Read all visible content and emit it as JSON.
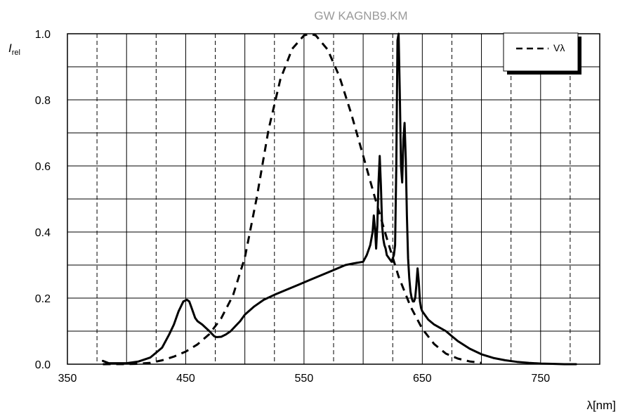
{
  "chart_data": {
    "type": "line",
    "title": "GW KAGNB9.KM",
    "xlabel": "λ[nm]",
    "ylabel": "I",
    "ylabel_sub": "rel",
    "xlim": [
      350,
      800
    ],
    "ylim": [
      0,
      1.0
    ],
    "xticks": [
      350,
      450,
      550,
      650,
      750
    ],
    "yticks": [
      0.0,
      0.2,
      0.4,
      0.6,
      0.8,
      1.0
    ],
    "ytick_labels": [
      "0.0",
      "0.2",
      "0.4",
      "0.6",
      "0.8",
      "1.0"
    ],
    "grid": true,
    "legend_position": "top-right",
    "series": [
      {
        "name": "",
        "style": "solid",
        "color": "#000000",
        "x": [
          380,
          385,
          400,
          410,
          420,
          430,
          436,
          440,
          444,
          448,
          451,
          453,
          455,
          458,
          460,
          464,
          470,
          474,
          476,
          480,
          484,
          488,
          492,
          496,
          500,
          508,
          516,
          525,
          535,
          545,
          555,
          565,
          575,
          585,
          592,
          600,
          603,
          606,
          608,
          609,
          610,
          611,
          612,
          613,
          614,
          615,
          616,
          617,
          618,
          619,
          620,
          622,
          624,
          626,
          627,
          628,
          629,
          630,
          631,
          632,
          633,
          634,
          635,
          636,
          637,
          638,
          639,
          640,
          641,
          642,
          643,
          644,
          645,
          646,
          647,
          648,
          649,
          650,
          652,
          655,
          660,
          665,
          670,
          675,
          680,
          690,
          700,
          710,
          720,
          730,
          740,
          750,
          760,
          770,
          780
        ],
        "y": [
          0.01,
          0.003,
          0.003,
          0.008,
          0.02,
          0.05,
          0.09,
          0.12,
          0.16,
          0.19,
          0.195,
          0.19,
          0.17,
          0.14,
          0.13,
          0.12,
          0.1,
          0.085,
          0.082,
          0.083,
          0.09,
          0.1,
          0.115,
          0.13,
          0.15,
          0.175,
          0.195,
          0.21,
          0.225,
          0.24,
          0.255,
          0.27,
          0.285,
          0.3,
          0.305,
          0.31,
          0.33,
          0.36,
          0.4,
          0.45,
          0.41,
          0.35,
          0.42,
          0.55,
          0.63,
          0.54,
          0.42,
          0.38,
          0.36,
          0.35,
          0.33,
          0.32,
          0.31,
          0.33,
          0.36,
          0.6,
          0.98,
          1.0,
          0.82,
          0.6,
          0.55,
          0.68,
          0.73,
          0.62,
          0.45,
          0.32,
          0.26,
          0.22,
          0.2,
          0.19,
          0.19,
          0.2,
          0.24,
          0.29,
          0.25,
          0.19,
          0.17,
          0.16,
          0.15,
          0.135,
          0.12,
          0.11,
          0.1,
          0.085,
          0.07,
          0.047,
          0.03,
          0.019,
          0.012,
          0.007,
          0.004,
          0.002,
          0.001,
          0.0,
          0.0
        ]
      },
      {
        "name": "Vλ",
        "style": "dashed",
        "color": "#000000",
        "x": [
          380,
          400,
          410,
          420,
          430,
          440,
          450,
          460,
          470,
          480,
          490,
          500,
          510,
          520,
          530,
          540,
          550,
          555,
          560,
          570,
          580,
          590,
          600,
          610,
          620,
          630,
          640,
          650,
          660,
          670,
          680,
          690,
          700
        ],
        "y": [
          0.0,
          0.0004,
          0.0012,
          0.004,
          0.0116,
          0.023,
          0.038,
          0.06,
          0.091,
          0.139,
          0.208,
          0.323,
          0.503,
          0.71,
          0.862,
          0.954,
          0.995,
          1.0,
          0.995,
          0.952,
          0.87,
          0.757,
          0.631,
          0.503,
          0.381,
          0.265,
          0.175,
          0.107,
          0.061,
          0.032,
          0.017,
          0.0082,
          0.0041
        ]
      }
    ]
  }
}
